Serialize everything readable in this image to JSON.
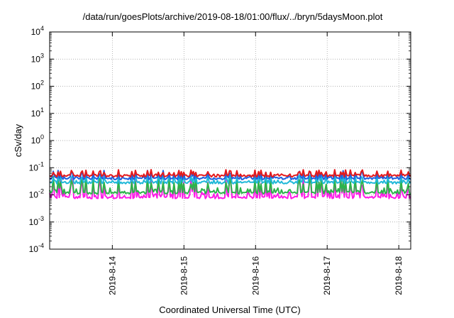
{
  "chart_data": {
    "type": "line",
    "title": "/data/run/goesPlots/archive/2019-08-18/01:00/flux/../bryn/5daysMoon.plot",
    "xlabel": "Coordinated Universal Time (UTC)",
    "ylabel": "cSv/day",
    "yscale": "log",
    "ylim": [
      0.0001,
      10000
    ],
    "xlim": [
      "2019-08-13 03:00",
      "2019-08-18 04:00"
    ],
    "x_ticks": [
      "2019-8-14",
      "2019-8-15",
      "2019-8-16",
      "2019-8-17",
      "2019-8-18"
    ],
    "y_ticks": [
      {
        "base": "10",
        "exp": "-4"
      },
      {
        "base": "10",
        "exp": "-3"
      },
      {
        "base": "10",
        "exp": "-2"
      },
      {
        "base": "10",
        "exp": "-1"
      },
      {
        "base": "10",
        "exp": "0"
      },
      {
        "base": "10",
        "exp": "1"
      },
      {
        "base": "10",
        "exp": "2"
      },
      {
        "base": "10",
        "exp": "3"
      },
      {
        "base": "10",
        "exp": "4"
      }
    ],
    "grid": true,
    "colors": {
      "red": "#e41a1c",
      "blue": "#1f5fe0",
      "cyan": "#20b8d8",
      "green": "#2cb34a",
      "magenta": "#ff1ae8"
    },
    "series": [
      {
        "color_key": "red",
        "baseline": 0.05,
        "peak": 0.085
      },
      {
        "color_key": "blue",
        "baseline": 0.04,
        "peak": 0.08
      },
      {
        "color_key": "cyan",
        "baseline": 0.028,
        "peak": 0.06
      },
      {
        "color_key": "green",
        "baseline": 0.012,
        "peak": 0.05
      },
      {
        "color_key": "magenta",
        "baseline": 0.008,
        "peak": 0.05
      }
    ]
  }
}
